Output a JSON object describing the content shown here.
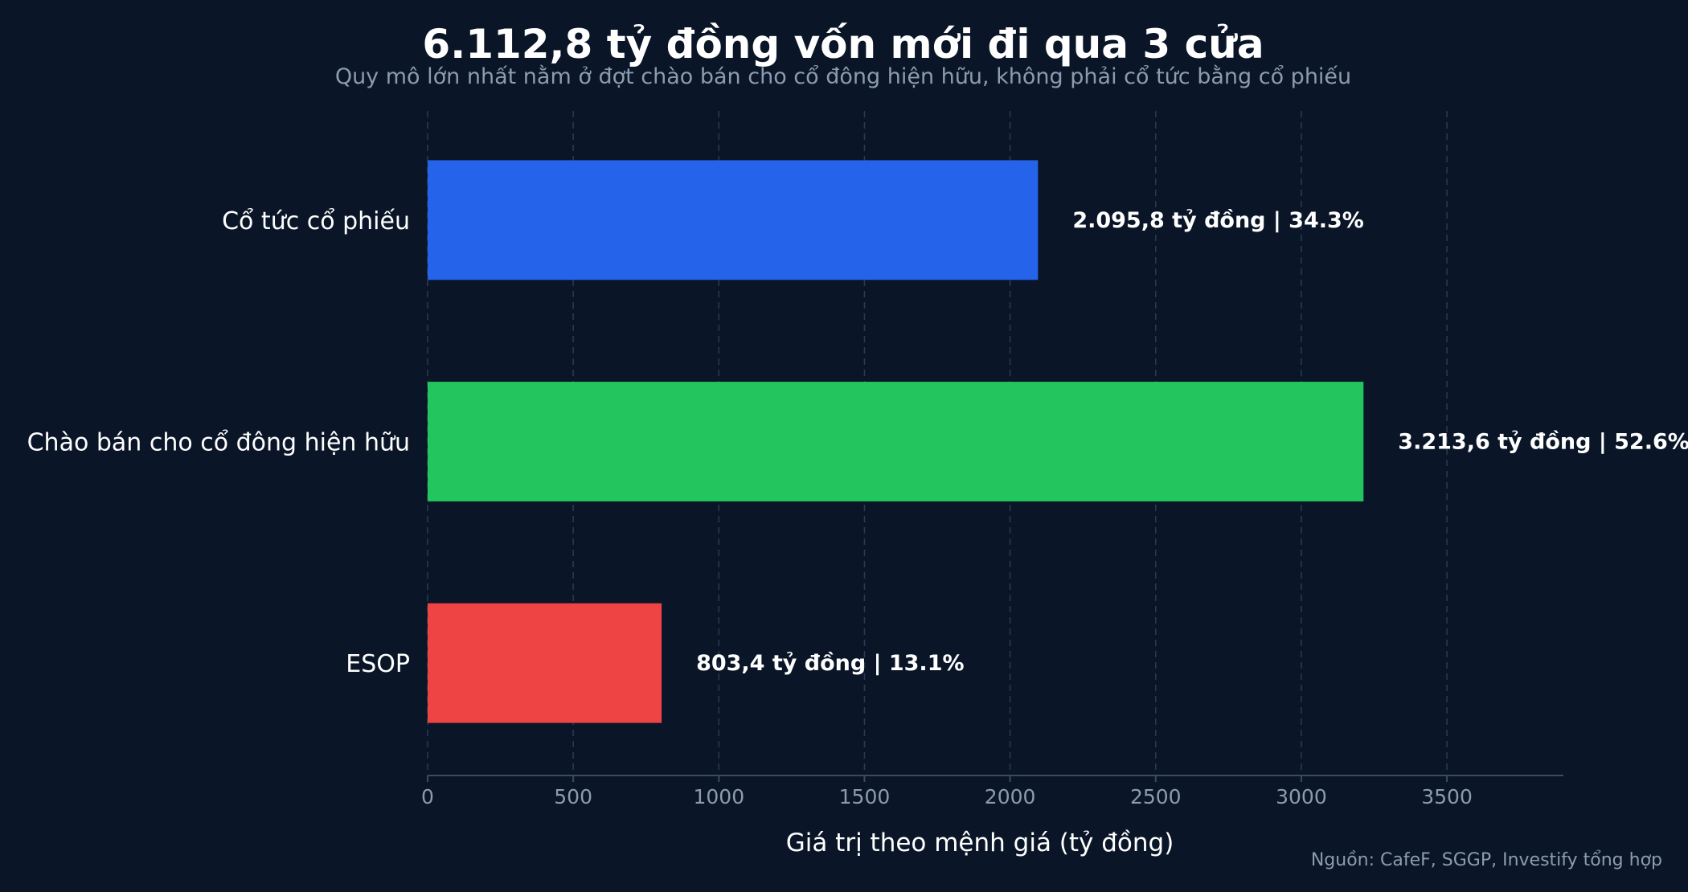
{
  "chart_data": {
    "type": "bar",
    "orientation": "horizontal",
    "title": "6.112,8 tỷ đồng vốn mới đi qua 3 cửa",
    "subtitle": "Quy mô lớn nhất nằm ở đợt chào bán cho cổ đông hiện hữu, không phải cổ tức bằng cổ phiếu",
    "categories": [
      "Cổ tức cổ phiếu",
      "Chào bán cho cổ đông hiện hữu",
      "ESOP"
    ],
    "values": [
      2095.8,
      3213.6,
      803.4
    ],
    "data_labels": [
      "2.095,8 tỷ đồng | 34.3%",
      "3.213,6 tỷ đồng | 52.6%",
      "803,4 tỷ đồng | 13.1%"
    ],
    "colors": [
      "#2563eb",
      "#22c55e",
      "#ef4444"
    ],
    "xlabel": "Giá trị theo mệnh giá (tỷ đồng)",
    "ylabel": "",
    "xlim": [
      0,
      3900
    ],
    "xticks": [
      0,
      500,
      1000,
      1500,
      2000,
      2500,
      3000,
      3500
    ],
    "grid": true,
    "source": "Nguồn: CafeF, SGGP, Investify tổng hợp"
  }
}
